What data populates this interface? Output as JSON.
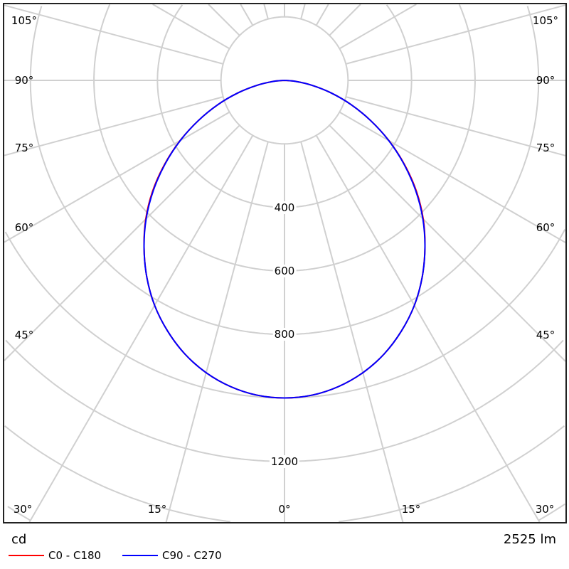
{
  "chart_data": {
    "type": "polar-line",
    "unit_label": "cd",
    "flux_label": "2525 lm",
    "radial_ticks": [
      200,
      400,
      600,
      800,
      1000,
      1200,
      1400,
      1600
    ],
    "radial_tick_labels": [
      "400",
      "600",
      "800",
      "1200"
    ],
    "radial_label_values": [
      400,
      600,
      800,
      1200
    ],
    "angle_labels_side": [
      "105°",
      "90°",
      "75°",
      "60°",
      "45°"
    ],
    "angle_labels_bottom": [
      "30°",
      "15°",
      "0°",
      "15°",
      "30°"
    ],
    "angle_step_deg": 15,
    "grid": true,
    "legend_placement": "bottom-left",
    "angles_deg": [
      0,
      5,
      10,
      15,
      20,
      25,
      30,
      35,
      40,
      45,
      50,
      55,
      60,
      65,
      70,
      75,
      80,
      85,
      90
    ],
    "series": [
      {
        "name": "C0 - C180",
        "color": "#ff0000",
        "values": [
          1000,
          995,
          979,
          953,
          917,
          871,
          818,
          756,
          688,
          618,
          542,
          461,
          380,
          299,
          223,
          151,
          86,
          33,
          0
        ]
      },
      {
        "name": "C90 - C270",
        "color": "#0000ff",
        "values": [
          1000,
          995,
          979,
          953,
          917,
          871,
          818,
          756,
          688,
          616,
          539,
          459,
          379,
          299,
          223,
          151,
          86,
          33,
          0
        ]
      }
    ]
  }
}
